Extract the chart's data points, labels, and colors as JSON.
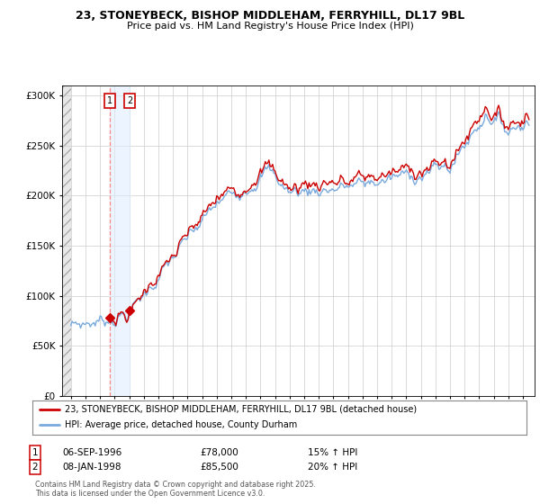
{
  "title1": "23, STONEYBECK, BISHOP MIDDLEHAM, FERRYHILL, DL17 9BL",
  "title2": "Price paid vs. HM Land Registry's House Price Index (HPI)",
  "hpi_color": "#7aaadd",
  "price_color": "#cc0000",
  "background_color": "#ffffff",
  "grid_color": "#cccccc",
  "purchase1_date": "06-SEP-1996",
  "purchase1_price": 78000,
  "purchase1_hpi": "15% ↑ HPI",
  "purchase2_date": "08-JAN-1998",
  "purchase2_price": 85500,
  "purchase2_hpi": "20% ↑ HPI",
  "legend_line1": "23, STONEYBECK, BISHOP MIDDLEHAM, FERRYHILL, DL17 9BL (detached house)",
  "legend_line2": "HPI: Average price, detached house, County Durham",
  "footer": "Contains HM Land Registry data © Crown copyright and database right 2025.\nThis data is licensed under the Open Government Licence v3.0.",
  "ylim_max": 310000,
  "purchase1_year": 1996.67,
  "purchase2_year": 1998.04
}
